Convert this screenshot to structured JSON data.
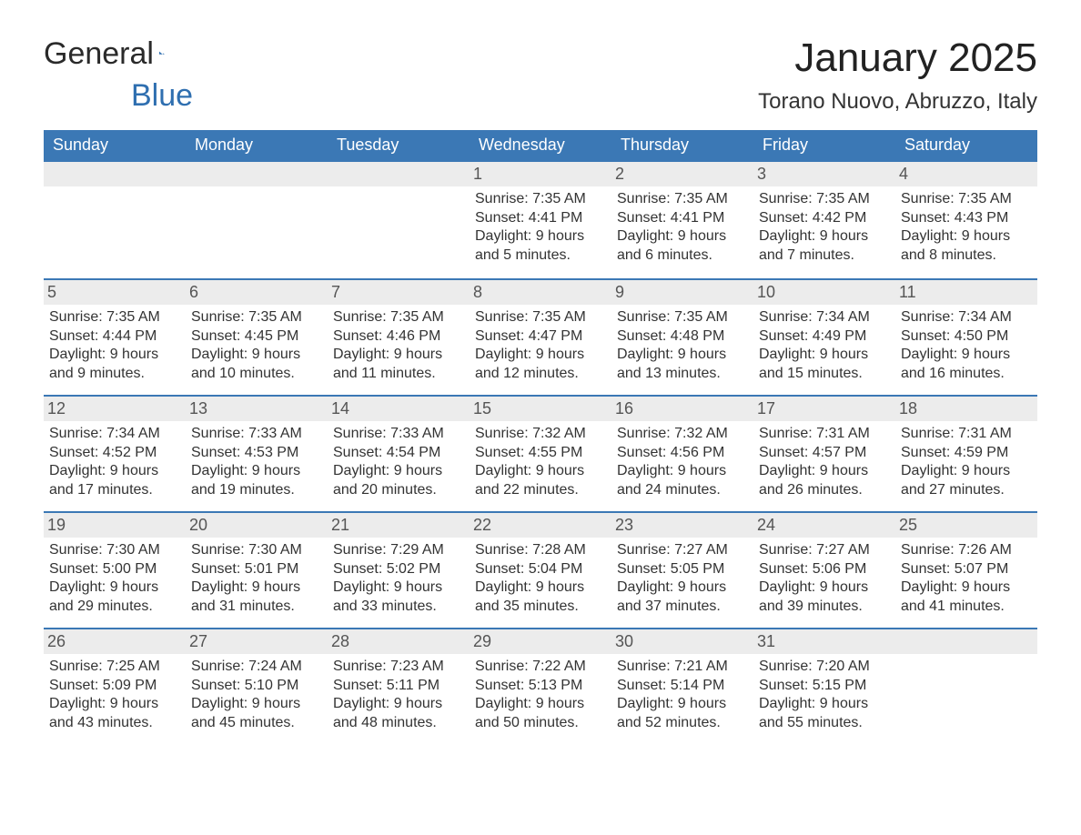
{
  "logo": {
    "text1": "General",
    "text2": "Blue"
  },
  "title": "January 2025",
  "location": "Torano Nuovo, Abruzzo, Italy",
  "colors": {
    "header_bg": "#3b78b5",
    "header_text": "#ffffff",
    "daynum_bg": "#ececec",
    "rule": "#3b78b5",
    "logo_blue": "#2f6fb0"
  },
  "weekdays": [
    "Sunday",
    "Monday",
    "Tuesday",
    "Wednesday",
    "Thursday",
    "Friday",
    "Saturday"
  ],
  "weeks": [
    [
      {
        "n": "",
        "empty": true
      },
      {
        "n": "",
        "empty": true
      },
      {
        "n": "",
        "empty": true
      },
      {
        "n": "1",
        "sunrise": "Sunrise: 7:35 AM",
        "sunset": "Sunset: 4:41 PM",
        "daylight": "Daylight: 9 hours and 5 minutes."
      },
      {
        "n": "2",
        "sunrise": "Sunrise: 7:35 AM",
        "sunset": "Sunset: 4:41 PM",
        "daylight": "Daylight: 9 hours and 6 minutes."
      },
      {
        "n": "3",
        "sunrise": "Sunrise: 7:35 AM",
        "sunset": "Sunset: 4:42 PM",
        "daylight": "Daylight: 9 hours and 7 minutes."
      },
      {
        "n": "4",
        "sunrise": "Sunrise: 7:35 AM",
        "sunset": "Sunset: 4:43 PM",
        "daylight": "Daylight: 9 hours and 8 minutes."
      }
    ],
    [
      {
        "n": "5",
        "sunrise": "Sunrise: 7:35 AM",
        "sunset": "Sunset: 4:44 PM",
        "daylight": "Daylight: 9 hours and 9 minutes."
      },
      {
        "n": "6",
        "sunrise": "Sunrise: 7:35 AM",
        "sunset": "Sunset: 4:45 PM",
        "daylight": "Daylight: 9 hours and 10 minutes."
      },
      {
        "n": "7",
        "sunrise": "Sunrise: 7:35 AM",
        "sunset": "Sunset: 4:46 PM",
        "daylight": "Daylight: 9 hours and 11 minutes."
      },
      {
        "n": "8",
        "sunrise": "Sunrise: 7:35 AM",
        "sunset": "Sunset: 4:47 PM",
        "daylight": "Daylight: 9 hours and 12 minutes."
      },
      {
        "n": "9",
        "sunrise": "Sunrise: 7:35 AM",
        "sunset": "Sunset: 4:48 PM",
        "daylight": "Daylight: 9 hours and 13 minutes."
      },
      {
        "n": "10",
        "sunrise": "Sunrise: 7:34 AM",
        "sunset": "Sunset: 4:49 PM",
        "daylight": "Daylight: 9 hours and 15 minutes."
      },
      {
        "n": "11",
        "sunrise": "Sunrise: 7:34 AM",
        "sunset": "Sunset: 4:50 PM",
        "daylight": "Daylight: 9 hours and 16 minutes."
      }
    ],
    [
      {
        "n": "12",
        "sunrise": "Sunrise: 7:34 AM",
        "sunset": "Sunset: 4:52 PM",
        "daylight": "Daylight: 9 hours and 17 minutes."
      },
      {
        "n": "13",
        "sunrise": "Sunrise: 7:33 AM",
        "sunset": "Sunset: 4:53 PM",
        "daylight": "Daylight: 9 hours and 19 minutes."
      },
      {
        "n": "14",
        "sunrise": "Sunrise: 7:33 AM",
        "sunset": "Sunset: 4:54 PM",
        "daylight": "Daylight: 9 hours and 20 minutes."
      },
      {
        "n": "15",
        "sunrise": "Sunrise: 7:32 AM",
        "sunset": "Sunset: 4:55 PM",
        "daylight": "Daylight: 9 hours and 22 minutes."
      },
      {
        "n": "16",
        "sunrise": "Sunrise: 7:32 AM",
        "sunset": "Sunset: 4:56 PM",
        "daylight": "Daylight: 9 hours and 24 minutes."
      },
      {
        "n": "17",
        "sunrise": "Sunrise: 7:31 AM",
        "sunset": "Sunset: 4:57 PM",
        "daylight": "Daylight: 9 hours and 26 minutes."
      },
      {
        "n": "18",
        "sunrise": "Sunrise: 7:31 AM",
        "sunset": "Sunset: 4:59 PM",
        "daylight": "Daylight: 9 hours and 27 minutes."
      }
    ],
    [
      {
        "n": "19",
        "sunrise": "Sunrise: 7:30 AM",
        "sunset": "Sunset: 5:00 PM",
        "daylight": "Daylight: 9 hours and 29 minutes."
      },
      {
        "n": "20",
        "sunrise": "Sunrise: 7:30 AM",
        "sunset": "Sunset: 5:01 PM",
        "daylight": "Daylight: 9 hours and 31 minutes."
      },
      {
        "n": "21",
        "sunrise": "Sunrise: 7:29 AM",
        "sunset": "Sunset: 5:02 PM",
        "daylight": "Daylight: 9 hours and 33 minutes."
      },
      {
        "n": "22",
        "sunrise": "Sunrise: 7:28 AM",
        "sunset": "Sunset: 5:04 PM",
        "daylight": "Daylight: 9 hours and 35 minutes."
      },
      {
        "n": "23",
        "sunrise": "Sunrise: 7:27 AM",
        "sunset": "Sunset: 5:05 PM",
        "daylight": "Daylight: 9 hours and 37 minutes."
      },
      {
        "n": "24",
        "sunrise": "Sunrise: 7:27 AM",
        "sunset": "Sunset: 5:06 PM",
        "daylight": "Daylight: 9 hours and 39 minutes."
      },
      {
        "n": "25",
        "sunrise": "Sunrise: 7:26 AM",
        "sunset": "Sunset: 5:07 PM",
        "daylight": "Daylight: 9 hours and 41 minutes."
      }
    ],
    [
      {
        "n": "26",
        "sunrise": "Sunrise: 7:25 AM",
        "sunset": "Sunset: 5:09 PM",
        "daylight": "Daylight: 9 hours and 43 minutes."
      },
      {
        "n": "27",
        "sunrise": "Sunrise: 7:24 AM",
        "sunset": "Sunset: 5:10 PM",
        "daylight": "Daylight: 9 hours and 45 minutes."
      },
      {
        "n": "28",
        "sunrise": "Sunrise: 7:23 AM",
        "sunset": "Sunset: 5:11 PM",
        "daylight": "Daylight: 9 hours and 48 minutes."
      },
      {
        "n": "29",
        "sunrise": "Sunrise: 7:22 AM",
        "sunset": "Sunset: 5:13 PM",
        "daylight": "Daylight: 9 hours and 50 minutes."
      },
      {
        "n": "30",
        "sunrise": "Sunrise: 7:21 AM",
        "sunset": "Sunset: 5:14 PM",
        "daylight": "Daylight: 9 hours and 52 minutes."
      },
      {
        "n": "31",
        "sunrise": "Sunrise: 7:20 AM",
        "sunset": "Sunset: 5:15 PM",
        "daylight": "Daylight: 9 hours and 55 minutes."
      },
      {
        "n": "",
        "empty": true
      }
    ]
  ]
}
